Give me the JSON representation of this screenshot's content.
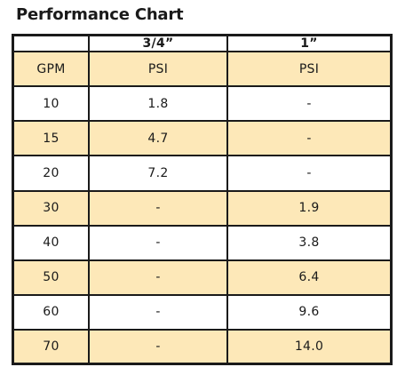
{
  "title": "Performance Chart",
  "table": {
    "header": [
      "",
      "3/4”",
      "1”"
    ],
    "units": [
      "GPM",
      "PSI",
      "PSI"
    ],
    "rows": [
      [
        "10",
        "1.8",
        "-"
      ],
      [
        "15",
        "4.7",
        "-"
      ],
      [
        "20",
        "7.2",
        "-"
      ],
      [
        "30",
        "-",
        "1.9"
      ],
      [
        "40",
        "-",
        "3.8"
      ],
      [
        "50",
        "-",
        "6.4"
      ],
      [
        "60",
        "-",
        "9.6"
      ],
      [
        "70",
        "-",
        "14.0"
      ]
    ]
  },
  "colors": {
    "shade": "#fde8b8",
    "border": "#1a1a1a"
  }
}
